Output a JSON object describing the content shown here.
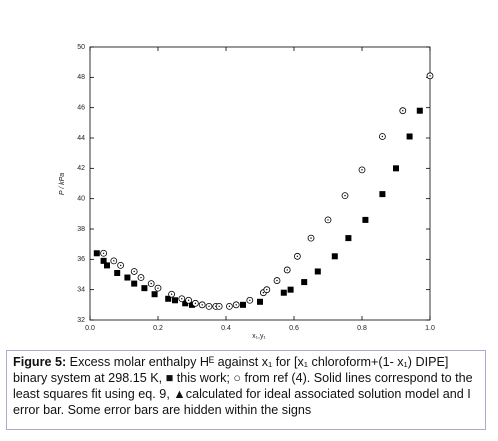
{
  "chart_data": {
    "type": "scatter",
    "xlabel": "x₁,y₁",
    "ylabel": "P / kPa",
    "xlim": [
      0,
      1.0
    ],
    "ylim": [
      32,
      50
    ],
    "xticks": [
      {
        "value": 0,
        "label": "0.0"
      },
      0.2,
      0.4,
      0.6,
      0.8,
      {
        "value": 1.0,
        "label": "1.0"
      }
    ],
    "yticks": [
      32,
      34,
      36,
      38,
      40,
      42,
      44,
      46,
      48,
      50
    ],
    "series": [
      {
        "marker": "square",
        "color": "#000000",
        "x": [
          0.02,
          0.04,
          0.05,
          0.08,
          0.11,
          0.13,
          0.16,
          0.19,
          0.23,
          0.25,
          0.28,
          0.3,
          0.45,
          0.5,
          0.57,
          0.59,
          0.63,
          0.67,
          0.72,
          0.76,
          0.81,
          0.86,
          0.9,
          0.94,
          0.97
        ],
        "values": [
          36.4,
          35.9,
          35.6,
          35.1,
          34.8,
          34.4,
          34.1,
          33.7,
          33.4,
          33.3,
          33.1,
          33.0,
          33.0,
          33.2,
          33.8,
          34.0,
          34.5,
          35.2,
          36.2,
          37.4,
          38.6,
          40.3,
          42.0,
          44.1,
          45.8
        ]
      },
      {
        "marker": "circle",
        "color": "#000000",
        "x": [
          0.04,
          0.07,
          0.09,
          0.13,
          0.15,
          0.18,
          0.2,
          0.24,
          0.27,
          0.29,
          0.31,
          0.33,
          0.35,
          0.37,
          0.38,
          0.41,
          0.43,
          0.47,
          0.51,
          0.52,
          0.55,
          0.58,
          0.61,
          0.65,
          0.7,
          0.75,
          0.8,
          0.86,
          0.92,
          1.0
        ],
        "values": [
          36.4,
          35.9,
          35.6,
          35.2,
          34.8,
          34.4,
          34.1,
          33.7,
          33.4,
          33.3,
          33.1,
          33.0,
          32.9,
          32.9,
          32.9,
          32.9,
          33.0,
          33.3,
          33.8,
          34.0,
          34.6,
          35.3,
          36.2,
          37.4,
          38.6,
          40.2,
          41.9,
          44.1,
          45.8,
          48.1
        ]
      }
    ]
  },
  "caption": {
    "label": "Figure 5:",
    "text": " Excess molar enthalpy Hᴱ against x₁ for [x₁ chloroform+(1- x₁) DIPE] binary system at 298.15 K, ■ this work; ○ from ref (4). Solid lines correspond to the least squares fit using eq. 9, ▲calculated for ideal associated solution model and I error bar. Some error bars are hidden within the signs"
  }
}
